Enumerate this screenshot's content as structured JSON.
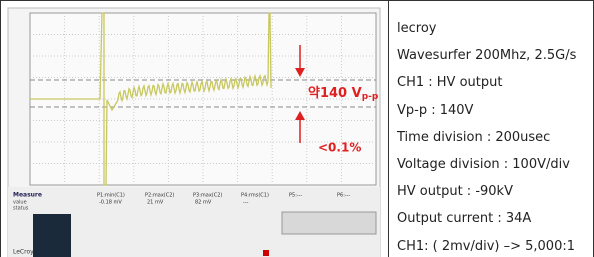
{
  "scope": {
    "annotations": {
      "vpp": "약140 V",
      "vpp_sub": "p-p",
      "ratio": "<0.1%"
    },
    "measure": {
      "title": "Measure",
      "row_labels": [
        "value",
        "status"
      ],
      "params": [
        "P1:min(C1)",
        "P2:max(C2)",
        "P3:max(C2)",
        "P4:rms(C1)",
        "P5:---",
        "P6:---"
      ],
      "values": [
        "-0.18 mV",
        "21 mV",
        "82 mV",
        "---"
      ]
    },
    "brand": "LeCroy"
  },
  "specs": [
    "lecroy",
    "Wavesurfer 200Mhz, 2.5G/s",
    "CH1 : HV output",
    "Vp-p : 140V",
    "Time division : 200usec",
    "Voltage division : 100V/div",
    "HV output : -90kV",
    "Output current :  34A",
    "CH1: ( 2mv/div)  –> 5,000:1"
  ]
}
